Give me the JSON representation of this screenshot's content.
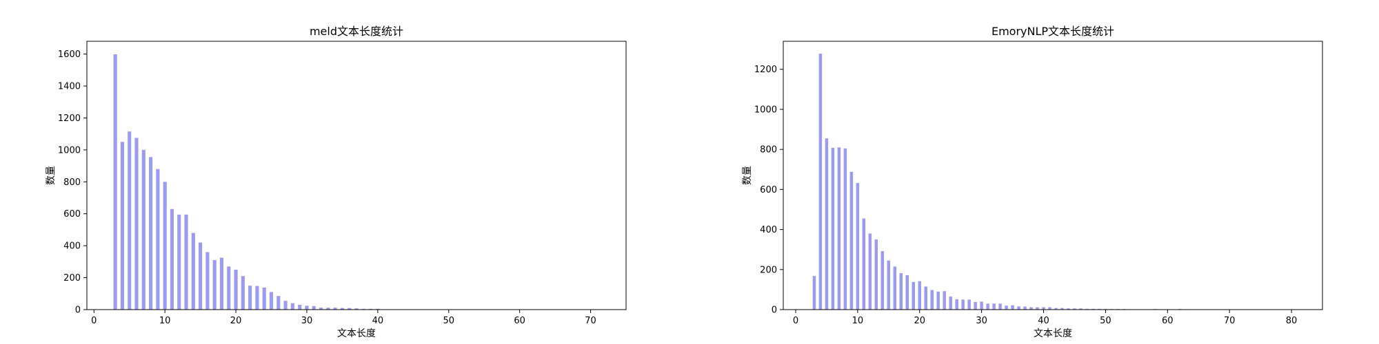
{
  "chart_data": [
    {
      "type": "bar",
      "title": "meld文本长度统计",
      "xlabel": "文本长度",
      "ylabel": "数量",
      "xlim": [
        -1,
        75
      ],
      "ylim": [
        0,
        1680
      ],
      "xticks": [
        0,
        10,
        20,
        30,
        40,
        50,
        60,
        70
      ],
      "yticks": [
        0,
        200,
        400,
        600,
        800,
        1000,
        1200,
        1400,
        1600
      ],
      "bar_color": "#9b9cf0",
      "grid": false,
      "x": [
        3,
        4,
        5,
        6,
        7,
        8,
        9,
        10,
        11,
        12,
        13,
        14,
        15,
        16,
        17,
        18,
        19,
        20,
        21,
        22,
        23,
        24,
        25,
        26,
        27,
        28,
        29,
        30,
        31,
        32,
        33,
        34,
        35,
        36,
        37,
        38,
        39,
        40
      ],
      "values": [
        1598,
        1050,
        1115,
        1075,
        1000,
        955,
        880,
        800,
        630,
        595,
        595,
        480,
        420,
        360,
        310,
        325,
        270,
        250,
        210,
        150,
        148,
        138,
        110,
        85,
        55,
        40,
        30,
        24,
        22,
        12,
        12,
        12,
        10,
        10,
        8,
        5,
        5,
        5
      ]
    },
    {
      "type": "bar",
      "title": "EmoryNLP文本长度统计",
      "xlabel": "文本长度",
      "ylabel": "数量",
      "xlim": [
        -2,
        85
      ],
      "ylim": [
        0,
        1340
      ],
      "xticks": [
        0,
        10,
        20,
        30,
        40,
        50,
        60,
        70,
        80
      ],
      "yticks": [
        0,
        200,
        400,
        600,
        800,
        1000,
        1200
      ],
      "bar_color": "#9b9cf0",
      "grid": false,
      "x": [
        3,
        4,
        5,
        6,
        7,
        8,
        9,
        10,
        11,
        12,
        13,
        14,
        15,
        16,
        17,
        18,
        19,
        20,
        21,
        22,
        23,
        24,
        25,
        26,
        27,
        28,
        29,
        30,
        31,
        32,
        33,
        34,
        35,
        36,
        37,
        38,
        39,
        40,
        41,
        42,
        43,
        44,
        45,
        46,
        47,
        48,
        49,
        50,
        51,
        52,
        53,
        54,
        58,
        59,
        62,
        63
      ],
      "values": [
        168,
        1278,
        855,
        808,
        810,
        805,
        688,
        632,
        455,
        380,
        350,
        292,
        245,
        215,
        182,
        172,
        138,
        142,
        115,
        98,
        90,
        92,
        65,
        52,
        50,
        50,
        38,
        40,
        30,
        30,
        30,
        20,
        22,
        16,
        15,
        12,
        12,
        12,
        12,
        8,
        8,
        6,
        6,
        6,
        4,
        4,
        4,
        3,
        3,
        3,
        3,
        2,
        3,
        2,
        3,
        2
      ]
    }
  ]
}
